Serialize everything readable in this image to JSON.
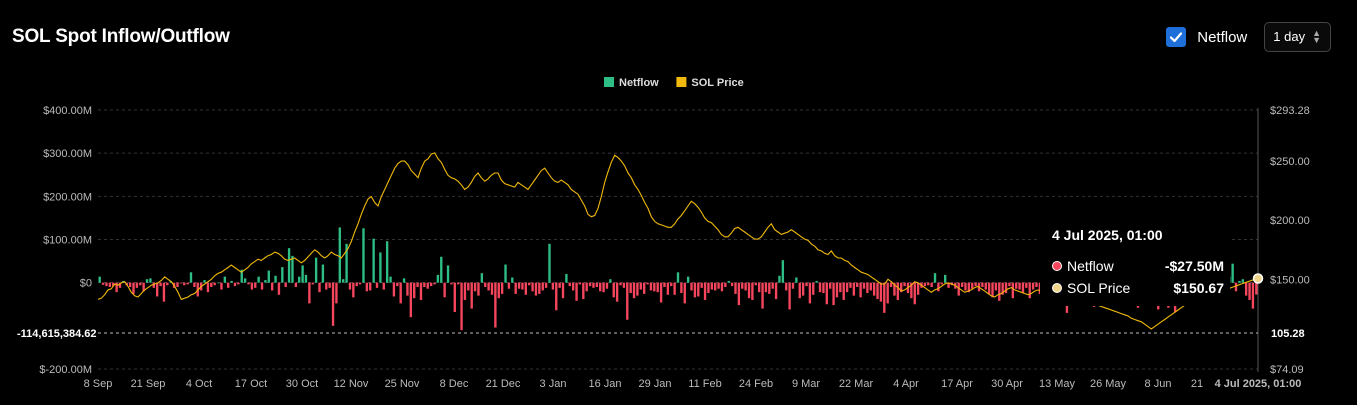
{
  "header": {
    "title": "SOL Spot Inflow/Outflow"
  },
  "controls": {
    "netflow_checked": true,
    "netflow_label": "Netflow",
    "interval": "1 day"
  },
  "legend": [
    {
      "name": "Netflow",
      "color": "#2ebd85"
    },
    {
      "name": "SOL Price",
      "color": "#f0b90b"
    }
  ],
  "tooltip": {
    "title": "4 Jul 2025, 01:00",
    "rows": [
      {
        "label": "Netflow",
        "value": "-$27.50M",
        "dot_color": "#f6465d"
      },
      {
        "label": "SOL Price",
        "value": "$150.67",
        "dot_color": "#f0d68a"
      }
    ]
  },
  "chart_data": {
    "type": "bar",
    "x_tick_labels": [
      "8 Sep",
      "21 Sep",
      "4 Oct",
      "17 Oct",
      "30 Oct",
      "12 Nov",
      "25 Nov",
      "8 Dec",
      "21 Dec",
      "3 Jan",
      "16 Jan",
      "29 Jan",
      "11 Feb",
      "24 Feb",
      "9 Mar",
      "22 Mar",
      "4 Apr",
      "17 Apr",
      "30 Apr",
      "13 May",
      "26 May",
      "8 Jun",
      "21",
      "4 Jul 2025, 01:00"
    ],
    "left_axis": {
      "ticks": [
        "$400.00M",
        "$300.00M",
        "$200.00M",
        "$100.00M",
        "$0",
        "$-200.00M"
      ],
      "range": [
        -200,
        400
      ],
      "unit": "$M"
    },
    "right_axis": {
      "ticks": [
        "$293.28",
        "$250.00",
        "$200.00",
        "$150.00",
        "105.28",
        "$74.09"
      ],
      "range": [
        74.09,
        293.28
      ]
    },
    "crosshair": {
      "left_label": "-114,615,384.62",
      "right_label": "105.28"
    },
    "colors": {
      "positive": "#2ebd85",
      "negative": "#f6465d",
      "price": "#f0b90b"
    },
    "series": [
      {
        "name": "Netflow",
        "values": [
          14,
          -5,
          -8,
          -10,
          -8,
          -22,
          -12,
          4,
          -6,
          -10,
          -26,
          -12,
          -6,
          -20,
          8,
          10,
          -12,
          -32,
          -8,
          -44,
          -6,
          4,
          -12,
          -10,
          -2,
          -6,
          -4,
          24,
          -10,
          -32,
          -18,
          6,
          -22,
          -10,
          -6,
          0,
          -16,
          14,
          -12,
          4,
          -8,
          -4,
          30,
          10,
          -4,
          -16,
          -12,
          14,
          -16,
          6,
          28,
          -18,
          16,
          -28,
          36,
          -10,
          80,
          62,
          -10,
          14,
          40,
          18,
          -48,
          -4,
          58,
          -22,
          42,
          -16,
          -12,
          -100,
          -48,
          128,
          8,
          90,
          -16,
          -34,
          -8,
          -4,
          126,
          -20,
          -18,
          102,
          -12,
          70,
          -16,
          96,
          14,
          -32,
          -8,
          -48,
          10,
          -30,
          -80,
          -36,
          -10,
          -40,
          -10,
          -14,
          -8,
          -4,
          18,
          60,
          -34,
          40,
          -4,
          -68,
          -4,
          -110,
          -40,
          -18,
          -60,
          -20,
          -30,
          22,
          -10,
          -18,
          -28,
          -104,
          -36,
          -26,
          42,
          -14,
          12,
          -26,
          -14,
          -16,
          -28,
          -6,
          -20,
          -30,
          -26,
          -18,
          -12,
          90,
          -16,
          -64,
          -12,
          -36,
          20,
          -8,
          -18,
          -42,
          -4,
          -38,
          -20,
          -8,
          -12,
          -10,
          -20,
          -22,
          -14,
          8,
          -34,
          -44,
          -6,
          -12,
          -86,
          -24,
          -36,
          -30,
          -16,
          -26,
          -4,
          -18,
          -20,
          -22,
          -46,
          -10,
          -28,
          -8,
          -28,
          24,
          -24,
          -48,
          14,
          -18,
          -34,
          -32,
          -12,
          -40,
          -24,
          -16,
          -18,
          -14,
          -20,
          -10,
          4,
          -8,
          -26,
          -52,
          -14,
          -18,
          -36,
          -40,
          -6,
          -22,
          -60,
          -22,
          -26,
          -14,
          -38,
          16,
          52,
          -18,
          -62,
          -14,
          12,
          -36,
          -30,
          -8,
          -48,
          -28,
          4,
          -22,
          -24,
          -50,
          -14,
          -52,
          -34,
          -22,
          -40,
          -22,
          -12,
          -30,
          -10,
          -34,
          -14,
          -24,
          -18,
          -30,
          -38,
          -44,
          -70,
          -48,
          -10,
          -30,
          -40,
          -22,
          -8,
          -24,
          -36,
          -50,
          -28,
          -12,
          -8,
          -6,
          -10,
          22,
          -20,
          -4,
          18,
          -12,
          -6,
          -14,
          -30,
          -10,
          -18,
          -22,
          -14,
          -8,
          -20,
          -10,
          -16,
          -26,
          -34,
          -18,
          -42,
          -28,
          -24,
          -8,
          -36,
          -14,
          -16,
          -24,
          -12,
          -36,
          -16,
          -10,
          -26,
          -44,
          -40,
          -30,
          -18,
          -28,
          -12,
          -44,
          -70,
          -10,
          -30,
          -48,
          -52,
          -6,
          -20,
          -18,
          -56,
          -44,
          -30,
          -16,
          -42,
          -36,
          -24,
          -18,
          -30,
          -42,
          -44,
          -26,
          -52,
          -58,
          -6,
          -2,
          -30,
          -50,
          -34,
          -62,
          -38,
          -22,
          -58,
          -44,
          -68,
          -28,
          -12,
          -26,
          -14,
          -20,
          -40,
          -36,
          -10,
          -22,
          -14,
          -8,
          -18,
          -40,
          12,
          4,
          14,
          44,
          -20,
          4,
          8,
          -30,
          -40,
          -60,
          -27.5
        ]
      },
      {
        "name": "SOL Price",
        "values": [
          133,
          134,
          137,
          141,
          142,
          146,
          145,
          147,
          148,
          144,
          139,
          136,
          135,
          138,
          141,
          143,
          145,
          146,
          147,
          149,
          152,
          150,
          148,
          144,
          139,
          133,
          134,
          135,
          137,
          138,
          141,
          144,
          146,
          148,
          150,
          153,
          155,
          156,
          158,
          160,
          162,
          160,
          158,
          156,
          158,
          160,
          163,
          165,
          167,
          166,
          168,
          170,
          171,
          173,
          172,
          170,
          167,
          166,
          167,
          168,
          166,
          164,
          166,
          169,
          172,
          175,
          173,
          170,
          168,
          170,
          173,
          171,
          170,
          168,
          172,
          176,
          182,
          190,
          197,
          205,
          212,
          218,
          220,
          215,
          212,
          220,
          226,
          232,
          238,
          244,
          248,
          250,
          250,
          247,
          242,
          239,
          236,
          244,
          250,
          252,
          256,
          257,
          252,
          249,
          243,
          238,
          236,
          235,
          233,
          230,
          226,
          228,
          232,
          237,
          240,
          236,
          233,
          235,
          238,
          240,
          240,
          234,
          231,
          230,
          229,
          228,
          232,
          230,
          228,
          226,
          230,
          234,
          238,
          242,
          244,
          240,
          236,
          233,
          232,
          234,
          232,
          230,
          226,
          224,
          222,
          217,
          212,
          205,
          203,
          204,
          210,
          220,
          232,
          241,
          249,
          255,
          253,
          250,
          246,
          240,
          236,
          230,
          226,
          221,
          215,
          210,
          203,
          199,
          197,
          196,
          195,
          194,
          194,
          197,
          201,
          204,
          208,
          212,
          216,
          214,
          211,
          207,
          202,
          199,
          198,
          195,
          192,
          188,
          186,
          186,
          189,
          193,
          194,
          192,
          190,
          188,
          186,
          184,
          184,
          186,
          190,
          194,
          197,
          192,
          190,
          188,
          189,
          190,
          192,
          190,
          188,
          186,
          184,
          183,
          180,
          178,
          175,
          174,
          172,
          171,
          174,
          170,
          168,
          168,
          166,
          165,
          162,
          160,
          158,
          156,
          155,
          154,
          152,
          150,
          148,
          146,
          146,
          150,
          148,
          145,
          143,
          140,
          141,
          143,
          145,
          148,
          147,
          145,
          143,
          141,
          139,
          141,
          142,
          144,
          146,
          147,
          146,
          145,
          143,
          141,
          139,
          140,
          141,
          143,
          144,
          142,
          140,
          138,
          136,
          135,
          137,
          138,
          140,
          142,
          143,
          141,
          140,
          139,
          138,
          137,
          138,
          140,
          141,
          140,
          139,
          137,
          136,
          134,
          133,
          135,
          137,
          138,
          137,
          136,
          134,
          133,
          132,
          131,
          130,
          129,
          128,
          127,
          126,
          125,
          124,
          123,
          122,
          121,
          120,
          119,
          117,
          116,
          115,
          114,
          112,
          110,
          108,
          110,
          112,
          114,
          116,
          118,
          120,
          122,
          124,
          126,
          128,
          130,
          131,
          132,
          133,
          134,
          135,
          136,
          137,
          138,
          139,
          140,
          141,
          142,
          143,
          144,
          145,
          146,
          147,
          148,
          149,
          150,
          150.67
        ]
      }
    ]
  }
}
